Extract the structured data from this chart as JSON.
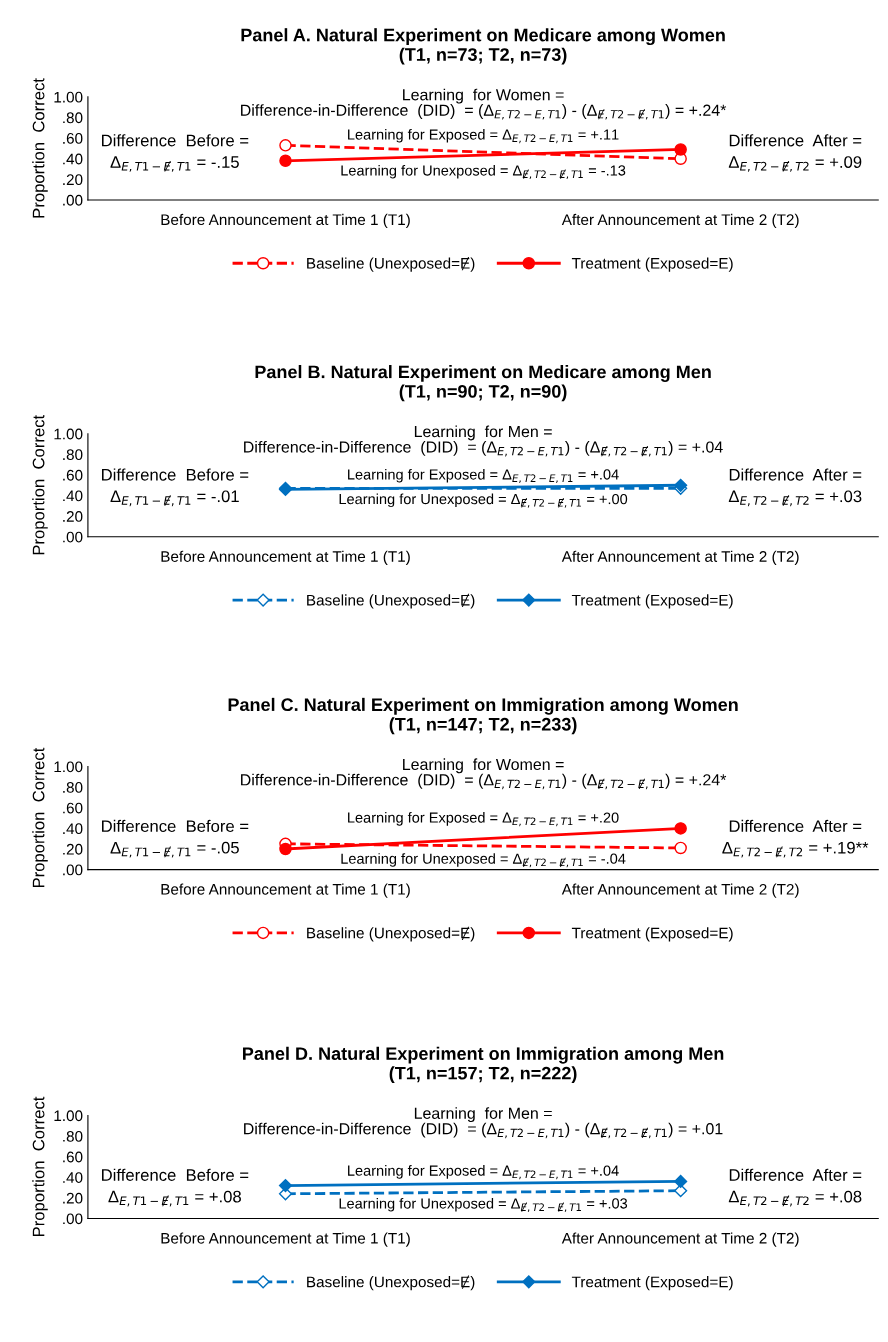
{
  "chart_data": [
    {
      "type": "line",
      "title": "Panel A. Natural Experiment on Medicare among Women\n(T1, n=73; T2, n=73)",
      "ylabel": "Proportion  Correct",
      "categories": [
        "Before Announcement at Time 1 (T1)",
        "After Announcement at Time 2 (T2)"
      ],
      "ylim": [
        0,
        1
      ],
      "yticks": [
        {
          "value": 0,
          "label": ".00"
        },
        {
          "value": 0.2,
          "label": ".20"
        },
        {
          "value": 0.4,
          "label": ".40"
        },
        {
          "value": 0.6,
          "label": ".60"
        },
        {
          "value": 0.8,
          "label": ".80"
        },
        {
          "value": 1,
          "label": "1.00"
        }
      ],
      "grid": false,
      "legend": "bottom",
      "marker": "circle",
      "series": [
        {
          "name": "Baseline (Unexposed=Ɇ)",
          "color": "#ff0000",
          "line_style": "dashed",
          "values": [
            0.53,
            0.4
          ]
        },
        {
          "name": "Treatment (Exposed=E)",
          "color": "#ff0000",
          "line_style": "solid",
          "values": [
            0.38,
            0.49
          ]
        }
      ],
      "annotations": [
        "Learning  for Women =\nDifference-in-Difference  (DID)  = (Δ$_{E,T2−E,T1}$) - (Δ$_{Ɇ,T2−Ɇ,T1}$) = +.24*",
        "Learning for Exposed = Δ$_{E,T2−E,T1}$ = +.11",
        "Learning for Unexposed = Δ$_{Ɇ,T2−Ɇ,T1}$ = -.13",
        "Difference  Before =\nΔ$_{E,T1−Ɇ,T1}$ = -.15",
        "Difference  After =\nΔ$_{E,T2−Ɇ,T2}$ = +.09"
      ]
    },
    {
      "type": "line",
      "title": "Panel B. Natural Experiment on Medicare among Men\n(T1, n=90; T2, n=90)",
      "ylabel": "Proportion  Correct",
      "categories": [
        "Before Announcement at Time 1 (T1)",
        "After Announcement at Time 2 (T2)"
      ],
      "ylim": [
        0,
        1
      ],
      "yticks": [
        {
          "value": 0,
          "label": ".00"
        },
        {
          "value": 0.2,
          "label": ".20"
        },
        {
          "value": 0.4,
          "label": ".40"
        },
        {
          "value": 0.6,
          "label": ".60"
        },
        {
          "value": 0.8,
          "label": ".80"
        },
        {
          "value": 1,
          "label": "1.00"
        }
      ],
      "grid": false,
      "legend": "bottom",
      "marker": "diamond",
      "series": [
        {
          "name": "Baseline (Unexposed=Ɇ)",
          "color": "#0070c0",
          "line_style": "dashed",
          "values": [
            0.47,
            0.47
          ]
        },
        {
          "name": "Treatment (Exposed=E)",
          "color": "#0070c0",
          "line_style": "solid",
          "values": [
            0.46,
            0.5
          ]
        }
      ],
      "annotations": [
        "Learning  for Men =\nDifference-in-Difference  (DID)  = (Δ$_{E,T2−E,T1}$) - (Δ$_{Ɇ,T2−Ɇ,T1}$) = +.04",
        "Learning for Exposed = Δ$_{E,T2−E,T1}$ = +.04",
        "Learning for Unexposed = Δ$_{Ɇ,T2−Ɇ,T1}$ = +.00",
        "Difference  Before =\nΔ$_{E,T1−Ɇ,T1}$ = -.01",
        "Difference  After =\nΔ$_{E,T2−Ɇ,T2}$ = +.03"
      ]
    },
    {
      "type": "line",
      "title": "Panel C. Natural Experiment on Immigration among Women\n(T1, n=147; T2, n=233)",
      "ylabel": "Proportion  Correct",
      "categories": [
        "Before Announcement at Time 1 (T1)",
        "After Announcement at Time 2 (T2)"
      ],
      "ylim": [
        0,
        1
      ],
      "yticks": [
        {
          "value": 0,
          "label": ".00"
        },
        {
          "value": 0.2,
          "label": ".20"
        },
        {
          "value": 0.4,
          "label": ".40"
        },
        {
          "value": 0.6,
          "label": ".60"
        },
        {
          "value": 0.8,
          "label": ".80"
        },
        {
          "value": 1,
          "label": "1.00"
        }
      ],
      "grid": false,
      "legend": "bottom",
      "marker": "circle",
      "series": [
        {
          "name": "Baseline (Unexposed=Ɇ)",
          "color": "#ff0000",
          "line_style": "dashed",
          "values": [
            0.25,
            0.21
          ]
        },
        {
          "name": "Treatment (Exposed=E)",
          "color": "#ff0000",
          "line_style": "solid",
          "values": [
            0.2,
            0.4
          ]
        }
      ],
      "annotations": [
        "Learning  for Women =\nDifference-in-Difference  (DID)  = (Δ$_{E,T2−E,T1}$) - (Δ$_{Ɇ,T2−Ɇ,T1}$) = +.24*",
        "Learning for Exposed = Δ$_{E,T2−E,T1}$ = +.20",
        "Learning for Unexposed = Δ$_{Ɇ,T2−Ɇ,T1}$ = -.04",
        "Difference  Before =\nΔ$_{E,T1−Ɇ,T1}$ = -.05",
        "Difference  After =\nΔ$_{E,T2−Ɇ,T2}$ = +.19**"
      ]
    },
    {
      "type": "line",
      "title": "Panel D. Natural Experiment on Immigration among Men\n(T1, n=157; T2, n=222)",
      "ylabel": "Proportion  Correct",
      "categories": [
        "Before Announcement at Time 1 (T1)",
        "After Announcement at Time 2 (T2)"
      ],
      "ylim": [
        0,
        1
      ],
      "yticks": [
        {
          "value": 0,
          "label": ".00"
        },
        {
          "value": 0.2,
          "label": ".20"
        },
        {
          "value": 0.4,
          "label": ".40"
        },
        {
          "value": 0.6,
          "label": ".60"
        },
        {
          "value": 0.8,
          "label": ".80"
        },
        {
          "value": 1,
          "label": "1.00"
        }
      ],
      "grid": false,
      "legend": "bottom",
      "marker": "diamond",
      "series": [
        {
          "name": "Baseline (Unexposed=Ɇ)",
          "color": "#0070c0",
          "line_style": "dashed",
          "values": [
            0.24,
            0.27
          ]
        },
        {
          "name": "Treatment (Exposed=E)",
          "color": "#0070c0",
          "line_style": "solid",
          "values": [
            0.32,
            0.36
          ]
        }
      ],
      "annotations": [
        "Learning  for Men =\nDifference-in-Difference  (DID)  = (Δ$_{E,T2−E,T1}$) - (Δ$_{Ɇ,T2−Ɇ,T1}$) = +.01",
        "Learning for Exposed = Δ$_{E,T2−E,T1}$ = +.04",
        "Learning for Unexposed = Δ$_{Ɇ,T2−Ɇ,T1}$ = +.03",
        "Difference  Before =\nΔ$_{E,T1−Ɇ,T1}$ = +.08",
        "Difference  After =\nΔ$_{E,T2−Ɇ,T2}$ = +.08"
      ]
    }
  ]
}
